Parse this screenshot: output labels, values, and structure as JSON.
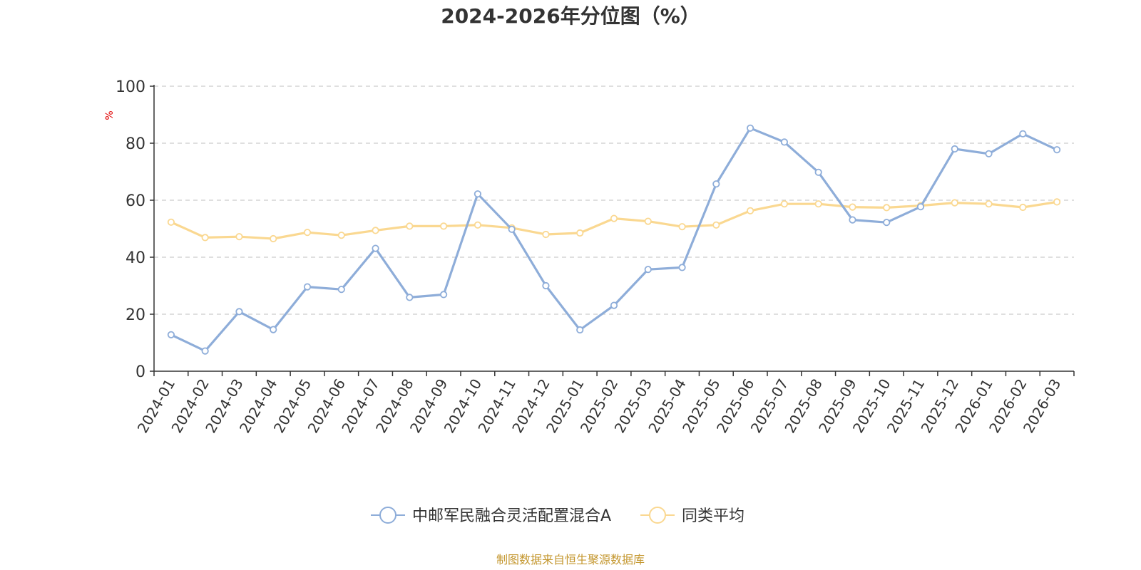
{
  "chart_data": {
    "type": "line",
    "title": "2024-2026年分位图（%）",
    "ylabel": "%",
    "ylim": [
      0,
      100
    ],
    "yticks": [
      0,
      20,
      40,
      60,
      80,
      100
    ],
    "grid": true,
    "legend_position": "bottom",
    "categories": [
      "2024-01",
      "2024-02",
      "2024-03",
      "2024-04",
      "2024-05",
      "2024-06",
      "2024-07",
      "2024-08",
      "2024-09",
      "2024-10",
      "2024-11",
      "2024-12",
      "2025-01",
      "2025-02",
      "2025-03",
      "2025-04",
      "2025-05",
      "2025-06",
      "2025-07",
      "2025-08",
      "2025-09",
      "2025-10",
      "2025-11",
      "2025-12",
      "2026-01",
      "2026-02",
      "2026-03"
    ],
    "series": [
      {
        "name": "中邮军民融合灵活配置混合A",
        "color": "#8eadd9",
        "values": [
          12.8,
          7.1,
          20.9,
          14.6,
          29.6,
          28.7,
          43.1,
          25.9,
          26.9,
          62.2,
          49.8,
          30.0,
          14.5,
          23.1,
          35.7,
          36.4,
          65.7,
          85.3,
          80.4,
          69.8,
          53.1,
          52.2,
          57.7,
          78.0,
          76.3,
          83.3,
          77.7
        ]
      },
      {
        "name": "同类平均",
        "color": "#fad891",
        "values": [
          52.3,
          46.9,
          47.2,
          46.5,
          48.7,
          47.7,
          49.4,
          50.9,
          50.9,
          51.3,
          50.3,
          48.0,
          48.5,
          53.6,
          52.6,
          50.7,
          51.3,
          56.3,
          58.7,
          58.7,
          57.6,
          57.4,
          58.1,
          59.1,
          58.7,
          57.5,
          59.4
        ]
      }
    ],
    "unit_color": "#e10000"
  },
  "source": {
    "text": "制图数据来自恒生聚源数据库",
    "color": "#c4972f"
  }
}
